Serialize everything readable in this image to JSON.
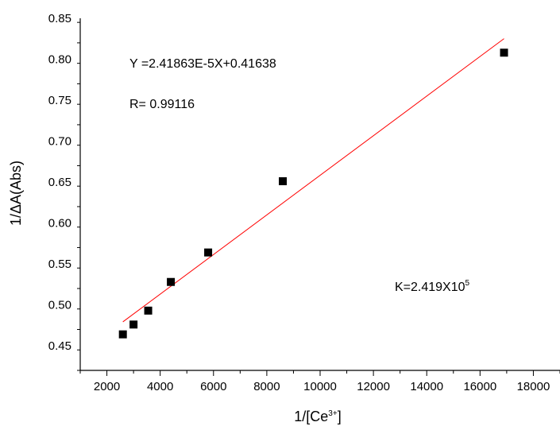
{
  "chart_data": {
    "type": "scatter",
    "xlabel": {
      "main": "1/[Ce",
      "sup": "3+",
      "end": "]"
    },
    "ylabel": "1/ΔA(Abs)",
    "xlim": [
      1000,
      19000
    ],
    "ylim": [
      0.42,
      0.85
    ],
    "x_ticks": [
      2000,
      4000,
      6000,
      8000,
      10000,
      12000,
      14000,
      16000,
      18000
    ],
    "x_tick_labels": [
      "2000",
      "4000",
      "6000",
      "8000",
      "10000",
      "12000",
      "14000",
      "16000",
      "18000"
    ],
    "y_ticks": [
      0.45,
      0.5,
      0.55,
      0.6,
      0.65,
      0.7,
      0.75,
      0.8,
      0.85
    ],
    "y_tick_labels": [
      "0.45",
      "0.50",
      "0.55",
      "0.60",
      "0.65",
      "0.70",
      "0.75",
      "0.80",
      "0.85"
    ],
    "grid": false,
    "series": [
      {
        "marker": "square",
        "color": "#000000",
        "points": [
          {
            "x": 2600,
            "y": 0.464
          },
          {
            "x": 3000,
            "y": 0.476
          },
          {
            "x": 3550,
            "y": 0.493
          },
          {
            "x": 4400,
            "y": 0.528
          },
          {
            "x": 5800,
            "y": 0.564
          },
          {
            "x": 8600,
            "y": 0.651
          },
          {
            "x": 16900,
            "y": 0.808
          }
        ]
      }
    ],
    "fit_line": {
      "color": "#ff0000",
      "slope": 2.41863e-05,
      "intercept": 0.41638,
      "x_range": [
        2600,
        16900
      ]
    },
    "annotations": {
      "equation": "Y =2.41863E-5X+0.41638",
      "r_value": "R= 0.99116",
      "k_value": {
        "main": "K=2.419X10",
        "sup": "5"
      }
    }
  }
}
